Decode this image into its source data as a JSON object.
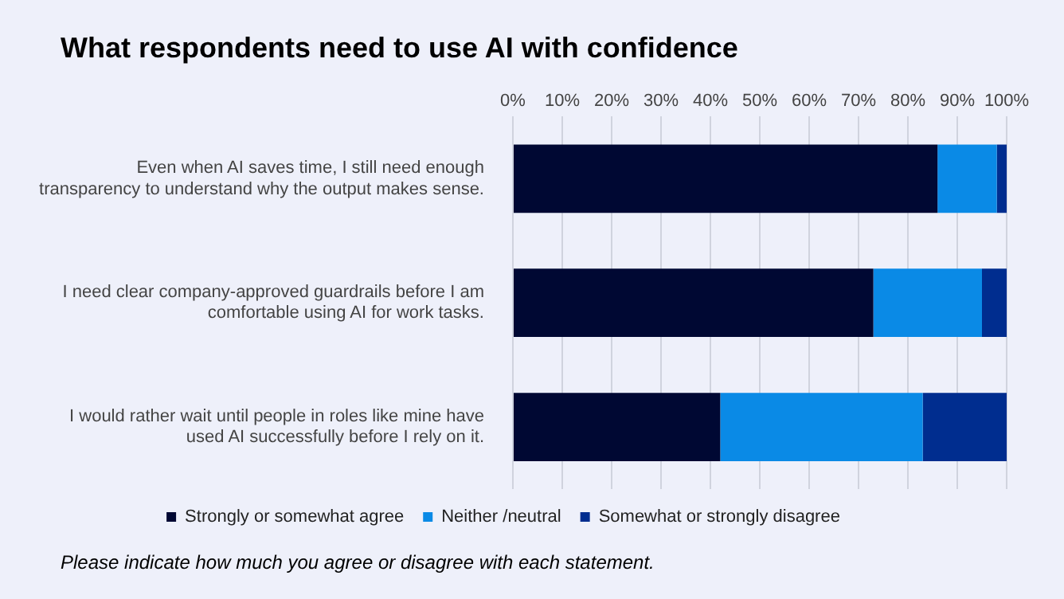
{
  "chart_data": {
    "type": "bar",
    "orientation": "horizontal",
    "stacked": true,
    "title": "What respondents need to use AI with confidence",
    "categories": [
      "Even when AI saves time, I still need enough transparency to understand why the output makes sense.",
      "I need clear company-approved guardrails before I am comfortable using AI for work tasks.",
      "I would rather wait until people in roles like mine have used AI successfully before I rely on it."
    ],
    "series": [
      {
        "name": "Strongly or somewhat agree",
        "color": "#000833",
        "values": [
          86,
          73,
          42
        ]
      },
      {
        "name": "Neither /neutral",
        "color": "#0a8ae6",
        "values": [
          12,
          22,
          41
        ]
      },
      {
        "name": "Somewhat or strongly disagree",
        "color": "#002d8f",
        "values": [
          2,
          5,
          17
        ]
      }
    ],
    "xlim": [
      0,
      100
    ],
    "xticks": [
      {
        "value": 0,
        "label": "0%"
      },
      {
        "value": 10,
        "label": "10%"
      },
      {
        "value": 20,
        "label": "20%"
      },
      {
        "value": 30,
        "label": "30%"
      },
      {
        "value": 40,
        "label": "40%"
      },
      {
        "value": 50,
        "label": "50%"
      },
      {
        "value": 60,
        "label": "60%"
      },
      {
        "value": 70,
        "label": "70%"
      },
      {
        "value": 80,
        "label": "80%"
      },
      {
        "value": 90,
        "label": "90%"
      },
      {
        "value": 100,
        "label": "100%"
      }
    ],
    "grid": "x",
    "legend": "bottom",
    "annotations": [
      "Please indicate how much you agree or disagree with each statement."
    ]
  }
}
